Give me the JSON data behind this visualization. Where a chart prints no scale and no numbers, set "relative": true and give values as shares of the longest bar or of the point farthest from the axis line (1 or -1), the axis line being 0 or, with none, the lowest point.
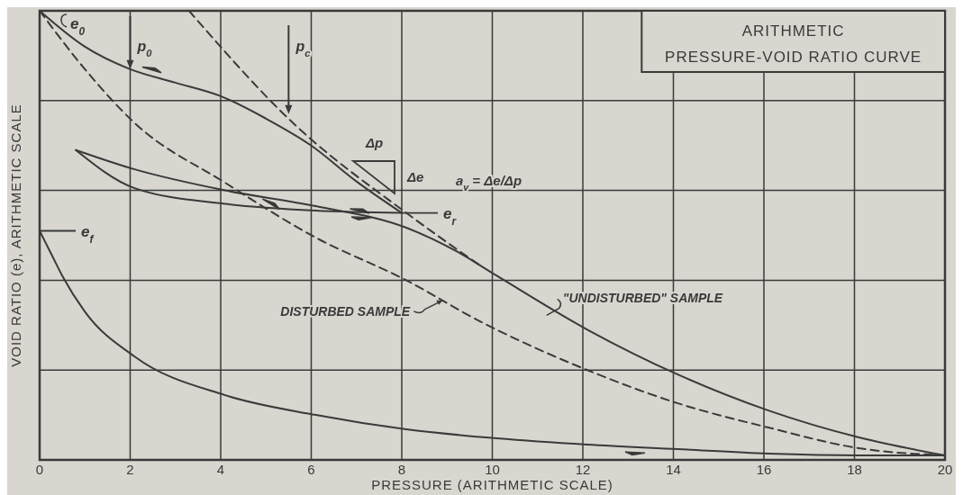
{
  "chart_data": {
    "type": "line",
    "relative": true,
    "title": "ARITHMETIC\nPRESSURE-VOID RATIO CURVE",
    "xlabel": "PRESSURE (ARITHMETIC SCALE)",
    "ylabel": "VOID RATIO (e), ARITHMETIC SCALE",
    "xlim": [
      0,
      20
    ],
    "xticks": [
      0,
      2,
      4,
      6,
      8,
      10,
      12,
      14,
      16,
      18,
      20
    ],
    "grid": true,
    "legend": false,
    "tick_labels": "x",
    "marker": "none",
    "series": [
      {
        "color": "#3a3a3a",
        "line_style": "solid",
        "x": [
          0,
          1,
          2,
          3,
          4,
          5,
          6,
          7,
          8
        ],
        "values": [
          1.0,
          0.92,
          0.87,
          0.84,
          0.81,
          0.76,
          0.7,
          0.62,
          0.55
        ]
      },
      {
        "color": "#3a3a3a",
        "line_style": "solid",
        "x": [
          8,
          6.1,
          4.1,
          2.1,
          0.8
        ],
        "values": [
          0.55,
          0.555,
          0.57,
          0.605,
          0.69
        ]
      },
      {
        "color": "#3a3a3a",
        "line_style": "solid",
        "x": [
          0.8,
          2.1,
          4.1,
          6.1,
          8.1,
          9.2,
          10.1,
          12.1,
          14.1,
          16.1,
          18.1,
          20
        ],
        "values": [
          0.69,
          0.647,
          0.6,
          0.565,
          0.517,
          0.465,
          0.41,
          0.29,
          0.19,
          0.11,
          0.05,
          0.01
        ]
      },
      {
        "color": "#3a3a3a",
        "line_style": "solid",
        "x": [
          20,
          18.1,
          16.1,
          14.1,
          12.1,
          10.1,
          8.1,
          6.1,
          4.1,
          2.1,
          1,
          0.5,
          0.25,
          0
        ],
        "values": [
          0.01,
          0.01,
          0.014,
          0.024,
          0.034,
          0.048,
          0.068,
          0.1,
          0.144,
          0.23,
          0.33,
          0.41,
          0.46,
          0.51
        ]
      },
      {
        "color": "#3a3a3a",
        "line_style": "dashed",
        "x": [
          0,
          1,
          2.1,
          4.1,
          6.1,
          8.1,
          9.7,
          12.1,
          14.1,
          16.1,
          18.1,
          20
        ],
        "values": [
          1.0,
          0.87,
          0.75,
          0.617,
          0.495,
          0.4,
          0.31,
          0.2,
          0.126,
          0.072,
          0.026,
          0.01
        ]
      },
      {
        "color": "#3a3a3a",
        "line_style": "dashed",
        "x": [
          3.3,
          5.6,
          8.1,
          9.7
        ],
        "values": [
          1.0,
          0.75,
          0.55,
          0.435
        ]
      }
    ],
    "annotations": [
      {
        "text": "e$_{0}$",
        "x": 0,
        "y": 1.0
      },
      {
        "text": "p$_{0}$",
        "x": 2,
        "y": 0.87
      },
      {
        "text": "p$_{c}$",
        "x": 5.5,
        "y": 0.77
      },
      {
        "text": "e$_{r}$",
        "x": 8,
        "y": 0.55
      },
      {
        "text": "e$_{f}$",
        "x": 0,
        "y": 0.51
      },
      {
        "text": "DISTURBED SAMPLE",
        "x": 8.9,
        "y": 0.355
      },
      {
        "text": "\"UNDISTURBED\" SAMPLE",
        "x": 11.2,
        "y": 0.33
      },
      "Δp",
      "Δe",
      "a$_{v}$ = Δe/Δp"
    ]
  }
}
